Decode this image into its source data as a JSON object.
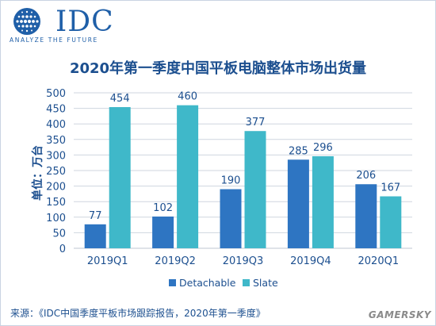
{
  "logo": {
    "wordmark": "IDC",
    "tagline": "ANALYZE THE FUTURE"
  },
  "source_note": "来源：《IDC中国季度平板市场跟踪报告，2020年第一季度》",
  "watermark": "GAMERSKY",
  "colors": {
    "detachable": "#2e75c2",
    "slate": "#3fb8c9",
    "title": "#1c4f8f",
    "grid": "#cfd6df",
    "axis_text": "#1c4f8f"
  },
  "chart_data": {
    "type": "bar",
    "title": "2020年第一季度中国平板电脑整体市场出货量",
    "xlabel": "",
    "ylabel": "单位：万台",
    "ylim": [
      0,
      500
    ],
    "yticks": [
      0,
      50,
      100,
      150,
      200,
      250,
      300,
      350,
      400,
      450,
      500
    ],
    "grid": true,
    "legend_position": "bottom",
    "categories": [
      "2019Q1",
      "2019Q2",
      "2019Q3",
      "2019Q4",
      "2020Q1"
    ],
    "series": [
      {
        "name": "Detachable",
        "values": [
          77,
          102,
          190,
          285,
          206
        ],
        "color": "#2e75c2"
      },
      {
        "name": "Slate",
        "values": [
          454,
          460,
          377,
          296,
          167
        ],
        "color": "#3fb8c9"
      }
    ]
  }
}
